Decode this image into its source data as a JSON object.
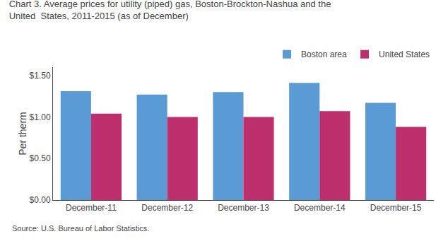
{
  "chart_data": {
    "type": "bar",
    "title": "Chart 3. Average prices for utility (piped) gas, Boston-Brockton-Nashua and the",
    "subtitle": "United  States, 2011-2015 (as of December)",
    "ylabel": "Per therm",
    "annotations": [
      "Source: U.S. Bureau of Labor Statistics."
    ],
    "categories": [
      "December-11",
      "December-12",
      "December-13",
      "December-14",
      "December-15"
    ],
    "series": [
      {
        "name": "Boston area",
        "color": "#5B9BD5",
        "values": [
          1.31,
          1.27,
          1.3,
          1.41,
          1.17
        ]
      },
      {
        "name": "United States",
        "color": "#BE2F6E",
        "values": [
          1.04,
          1.0,
          1.0,
          1.07,
          0.88
        ]
      }
    ],
    "ylim": [
      0,
      1.6
    ],
    "yticks": [
      {
        "value": 0.0,
        "label": "$0.00"
      },
      {
        "value": 0.5,
        "label": "$0.50"
      },
      {
        "value": 1.0,
        "label": "$1.00"
      },
      {
        "value": 1.5,
        "label": "$1.50"
      }
    ],
    "grid": false,
    "legend": "upper right"
  }
}
